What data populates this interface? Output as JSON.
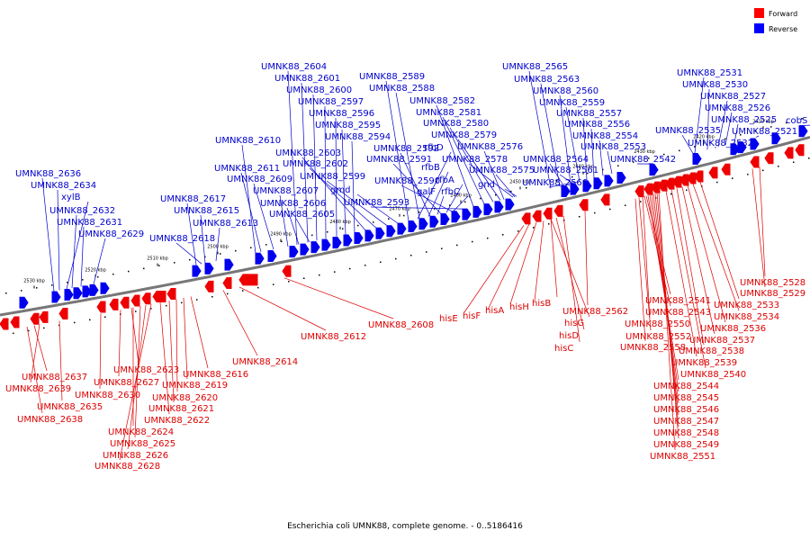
{
  "caption": "Escherichia coli UMNK88, complete genome. - 0..5186416",
  "legend": [
    {
      "label": "Forward",
      "color": "#ff0000"
    },
    {
      "label": "Reverse",
      "color": "#0000ff"
    }
  ],
  "colors": {
    "forward": "#ee0000",
    "reverse": "#0000ee",
    "backbone": "#777777",
    "label_forward": "#dd0000",
    "label_reverse": "#0000cc"
  },
  "ticks": [
    "2530 kbp",
    "2520 kbp",
    "2510 kbp",
    "2500 kbp",
    "2490 kbp",
    "2480 kbp",
    "2470 kbp",
    "2460 kbp",
    "2450 kbp",
    "2440 kbp",
    "2430 kbp",
    "2420 kbp",
    "2410 kbp"
  ],
  "reverse_labels": [
    "UMNK88_2636",
    "UMNK88_2634",
    "xylB",
    "UMNK88_2632",
    "UMNK88_2631",
    "UMNK88_2629",
    "UMNK88_2617",
    "UMNK88_2615",
    "UMNK88_2613",
    "UMNK88_2618",
    "UMNK88_2610",
    "UMNK88_2611",
    "UMNK88_2609",
    "UMNK88_2607",
    "UMNK88_2606",
    "UMNK88_2605",
    "UMNK88_2604",
    "UMNK88_2601",
    "UMNK88_2600",
    "UMNK88_2597",
    "UMNK88_2596",
    "UMNK88_2595",
    "UMNK88_2594",
    "UMNK88_2603",
    "UMNK88_2602",
    "UMNK88_2599",
    "gmd",
    "UMNK88_2589",
    "UMNK88_2588",
    "UMNK88_2592",
    "UMNK88_2591",
    "UMNK88_2590",
    "UMNK88_2593",
    "UMNK88_2582",
    "UMNK88_2581",
    "UMNK88_2580",
    "UMNK88_2579",
    "rfbD",
    "rfbB",
    "galF",
    "rfbA",
    "rfbC",
    "UMNK88_2576",
    "UMNK88_2578",
    "UMNK88_2575",
    "gnd",
    "UMNK88_2565",
    "UMNK88_2563",
    "UMNK88_2560",
    "UMNK88_2559",
    "UMNK88_2557",
    "UMNK88_2556",
    "UMNK88_2554",
    "UMNK88_2553",
    "UMNK88_2564",
    "UMNK88_2561",
    "UMNK88_2566",
    "UMNK88_2542",
    "UMNK88_2531",
    "UMNK88_2530",
    "UMNK88_2527",
    "UMNK88_2526",
    "UMNK88_2525",
    "UMNK88_2535",
    "UMNK88_2532",
    "UMNK88_2521",
    "cobS"
  ],
  "forward_labels": [
    "UMNK88_2637",
    "UMNK88_2639",
    "UMNK88_2635",
    "UMNK88_2638",
    "UMNK88_2630",
    "UMNK88_2627",
    "UMNK88_2623",
    "UMNK88_2624",
    "UMNK88_2625",
    "UMNK88_2626",
    "UMNK88_2628",
    "UMNK88_2622",
    "UMNK88_2621",
    "UMNK88_2620",
    "UMNK88_2619",
    "UMNK88_2616",
    "UMNK88_2614",
    "UMNK88_2612",
    "UMNK88_2608",
    "hisE",
    "hisF",
    "hisA",
    "hisH",
    "hisB",
    "hisG",
    "hisD",
    "hisC",
    "UMNK88_2562",
    "UMNK88_2558",
    "UMNK88_2552",
    "UMNK88_2550",
    "UMNK88_2543",
    "UMNK88_2541",
    "UMNK88_2544",
    "UMNK88_2545",
    "UMNK88_2546",
    "UMNK88_2547",
    "UMNK88_2548",
    "UMNK88_2549",
    "UMNK88_2551",
    "UMNK88_2539",
    "UMNK88_2540",
    "UMNK88_2538",
    "UMNK88_2537",
    "UMNK88_2536",
    "UMNK88_2534",
    "UMNK88_2533",
    "UMNK88_2529",
    "UMNK88_2528"
  ]
}
